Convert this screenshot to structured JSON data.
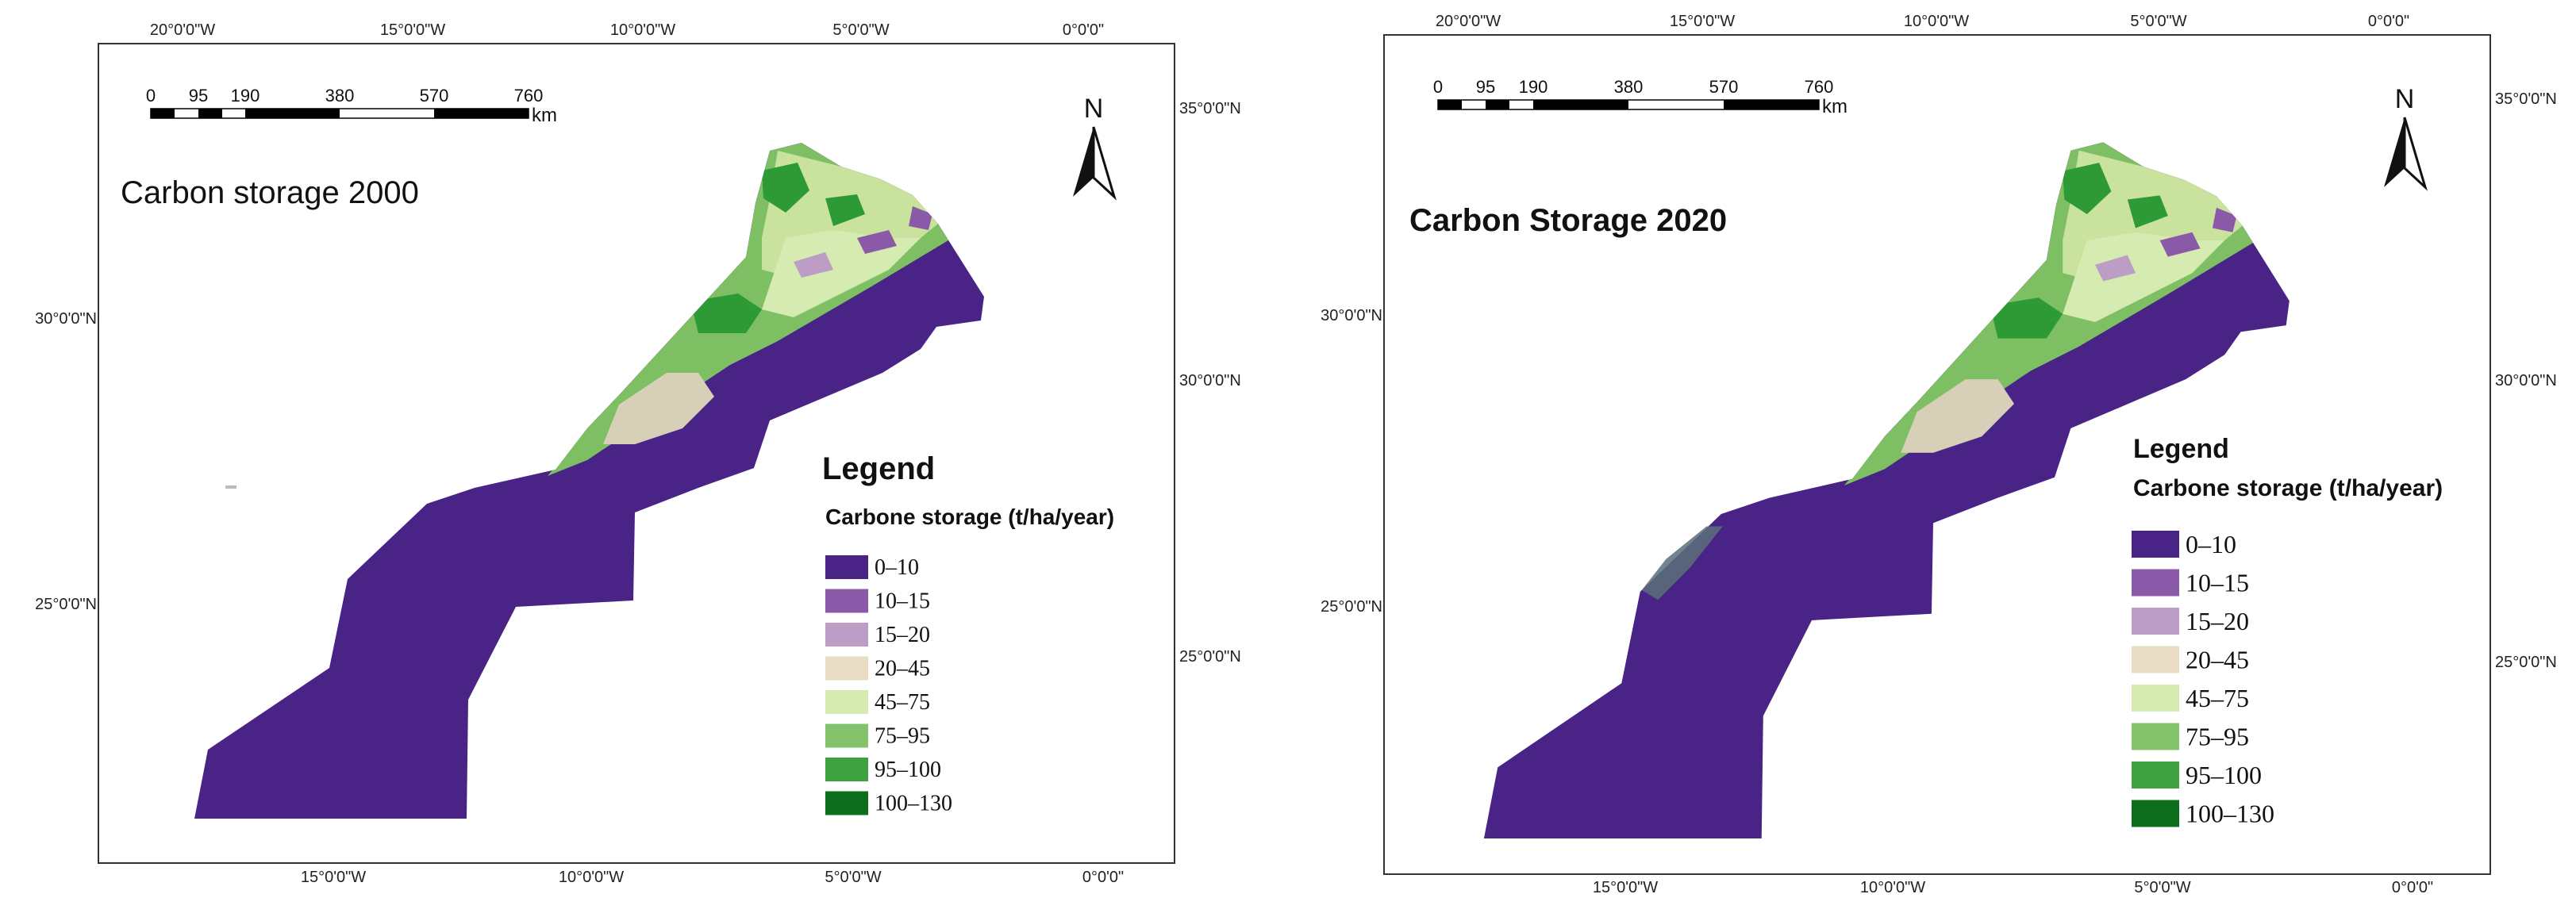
{
  "maps": [
    {
      "title": "Carbon storage 2000",
      "legend_title": "Legend",
      "legend_subtitle": "Carbone storage (t/ha/year)",
      "top_ticks": [
        "20°0'0\"W",
        "15°0'0\"W",
        "10°0'0\"W",
        "5°0'0\"W",
        "0°0'0\""
      ],
      "bottom_ticks": [
        "15°0'0\"W",
        "10°0'0\"W",
        "5°0'0\"W",
        "0°0'0\""
      ],
      "left_ticks": [
        "30°0'0\"N",
        "25°0'0\"N"
      ],
      "right_ticks": [
        "35°0'0\"N",
        "30°0'0\"N",
        "25°0'0\"N"
      ]
    },
    {
      "title": "Carbon Storage 2020",
      "legend_title": "Legend",
      "legend_subtitle": "Carbone storage (t/ha/year)",
      "top_ticks": [
        "20°0'0\"W",
        "15°0'0\"W",
        "10°0'0\"W",
        "5°0'0\"W",
        "0°0'0\""
      ],
      "bottom_ticks": [
        "15°0'0\"W",
        "10°0'0\"W",
        "5°0'0\"W",
        "0°0'0\""
      ],
      "left_ticks": [
        "30°0'0\"N",
        "25°0'0\"N"
      ],
      "right_ticks": [
        "35°0'0\"N",
        "30°0'0\"N",
        "25°0'0\"N"
      ]
    }
  ],
  "scale_bar": {
    "labels": [
      "0",
      "95",
      "190",
      "380",
      "570",
      "760"
    ],
    "unit": "km"
  },
  "north_label": "N",
  "legend_classes": [
    {
      "label": "0–10",
      "color": "#4a2387"
    },
    {
      "label": "10–15",
      "color": "#8a5aa9"
    },
    {
      "label": "15–20",
      "color": "#bb9dc6"
    },
    {
      "label": "20–45",
      "color": "#e8dcc4"
    },
    {
      "label": "45–75",
      "color": "#d6ebb1"
    },
    {
      "label": "75–95",
      "color": "#84c36c"
    },
    {
      "label": "95–100",
      "color": "#3da13f"
    },
    {
      "label": "100–130",
      "color": "#0c6e1c"
    }
  ]
}
